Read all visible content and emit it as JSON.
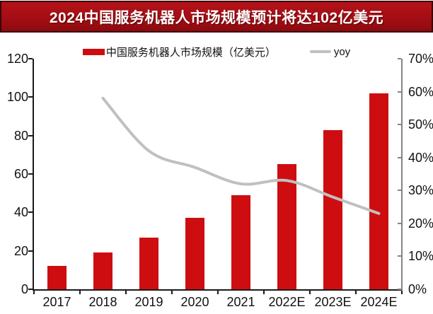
{
  "header": {
    "title": "2024中国服务机器人市场规模预计将达102亿美元"
  },
  "legend": {
    "bar_label": "中国服务机器人市场规模（亿美元）",
    "line_label": "yoy"
  },
  "chart_data": {
    "type": "bar",
    "title": "2024中国服务机器人市场规模预计将达102亿美元",
    "categories": [
      "2017",
      "2018",
      "2019",
      "2020",
      "2021",
      "2022E",
      "2023E",
      "2024E"
    ],
    "series": [
      {
        "name": "中国服务机器人市场规模（亿美元）",
        "type": "bar",
        "axis": "left",
        "values": [
          12,
          19,
          27,
          37,
          49,
          65,
          83,
          102
        ]
      },
      {
        "name": "yoy",
        "type": "line",
        "axis": "right",
        "values_percent": [
          null,
          58,
          42,
          37,
          32,
          33,
          28,
          23
        ]
      }
    ],
    "left_axis": {
      "range": [
        0,
        120
      ],
      "ticks": [
        0,
        20,
        40,
        60,
        80,
        100,
        120
      ]
    },
    "right_axis": {
      "range_percent": [
        0,
        70
      ],
      "ticks": [
        "0%",
        "10%",
        "20%",
        "30%",
        "40%",
        "50%",
        "60%",
        "70%"
      ]
    },
    "legend_position": "top",
    "grid": false
  },
  "colors": {
    "bar": "#ce0d10",
    "line": "#c1c0c0",
    "axis_left": "#1a1a1a",
    "axis_bottom": "#1a1a1a",
    "axis_right": "#858585",
    "tick_text": "#121212"
  }
}
